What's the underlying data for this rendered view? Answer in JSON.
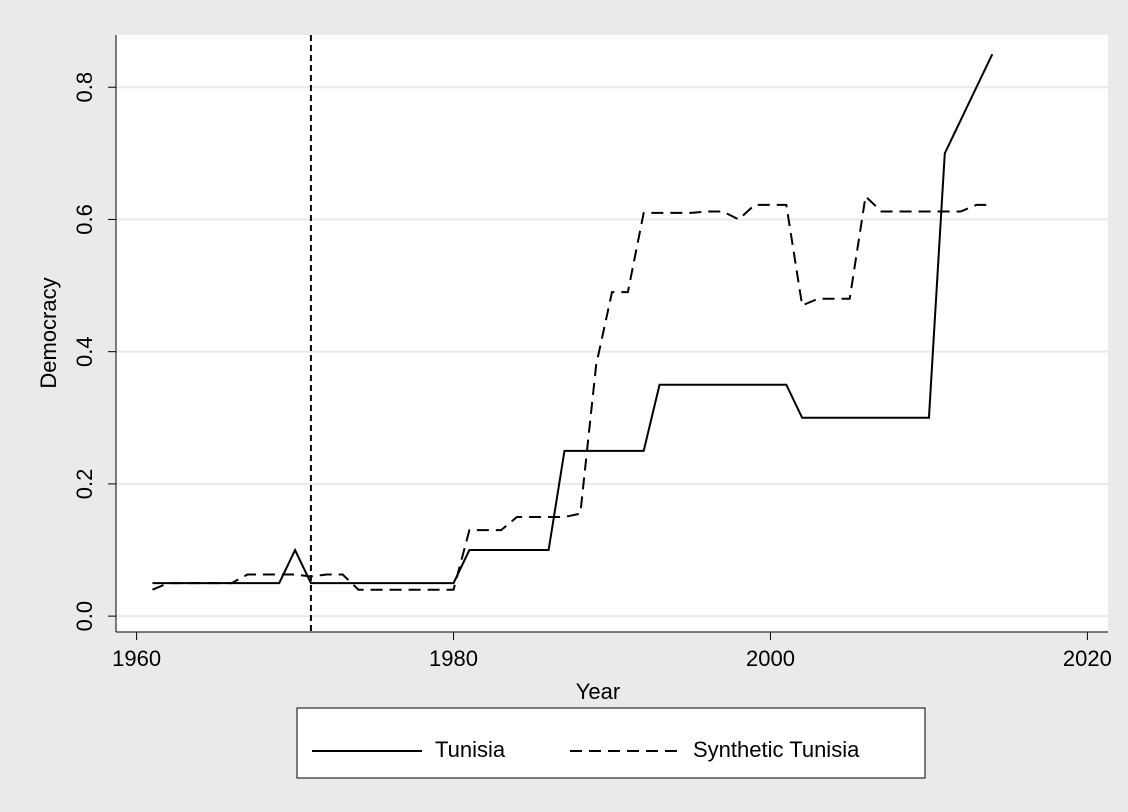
{
  "chart_data": {
    "type": "line",
    "x_label": "Year",
    "y_label": "Democracy",
    "x": [
      1961,
      1962,
      1963,
      1964,
      1965,
      1966,
      1967,
      1968,
      1969,
      1970,
      1971,
      1972,
      1973,
      1974,
      1975,
      1976,
      1977,
      1978,
      1979,
      1980,
      1981,
      1982,
      1983,
      1984,
      1985,
      1986,
      1987,
      1988,
      1989,
      1990,
      1991,
      1992,
      1993,
      1994,
      1995,
      1996,
      1997,
      1998,
      1999,
      2000,
      2001,
      2002,
      2003,
      2004,
      2005,
      2006,
      2007,
      2008,
      2009,
      2010,
      2011,
      2012,
      2013,
      2014
    ],
    "series": [
      {
        "name": "Tunisia",
        "color": "#000000",
        "dash": "solid",
        "values": [
          0.05,
          0.05,
          0.05,
          0.05,
          0.05,
          0.05,
          0.05,
          0.05,
          0.05,
          0.1,
          0.05,
          0.05,
          0.05,
          0.05,
          0.05,
          0.05,
          0.05,
          0.05,
          0.05,
          0.05,
          0.1,
          0.1,
          0.1,
          0.1,
          0.1,
          0.1,
          0.25,
          0.25,
          0.25,
          0.25,
          0.25,
          0.25,
          0.35,
          0.35,
          0.35,
          0.35,
          0.35,
          0.35,
          0.35,
          0.35,
          0.35,
          0.3,
          0.3,
          0.3,
          0.3,
          0.3,
          0.3,
          0.3,
          0.3,
          0.3,
          0.7,
          0.75,
          0.8,
          0.85
        ]
      },
      {
        "name": "Synthetic Tunisia",
        "color": "#000000",
        "dash": "dashed",
        "values": [
          0.04,
          0.05,
          0.05,
          0.05,
          0.05,
          0.05,
          0.063,
          0.063,
          0.063,
          0.063,
          0.06,
          0.063,
          0.063,
          0.04,
          0.04,
          0.04,
          0.04,
          0.04,
          0.04,
          0.04,
          0.13,
          0.13,
          0.13,
          0.15,
          0.15,
          0.15,
          0.15,
          0.155,
          0.38,
          0.49,
          0.49,
          0.61,
          0.61,
          0.61,
          0.61,
          0.612,
          0.612,
          0.6,
          0.622,
          0.622,
          0.622,
          0.47,
          0.48,
          0.48,
          0.48,
          0.635,
          0.612,
          0.612,
          0.612,
          0.612,
          0.612,
          0.612,
          0.622,
          0.622
        ]
      }
    ],
    "vline": 1971,
    "xlim": [
      1958.7,
      2021.3
    ],
    "xticks": [
      1960,
      1980,
      2000,
      2020
    ],
    "ylim": [
      -0.024,
      0.879
    ],
    "yticks": [
      {
        "value": 0,
        "label": "0.0"
      },
      0.2,
      0.4,
      0.6,
      0.8
    ],
    "grid": true,
    "legend": "bottom"
  }
}
